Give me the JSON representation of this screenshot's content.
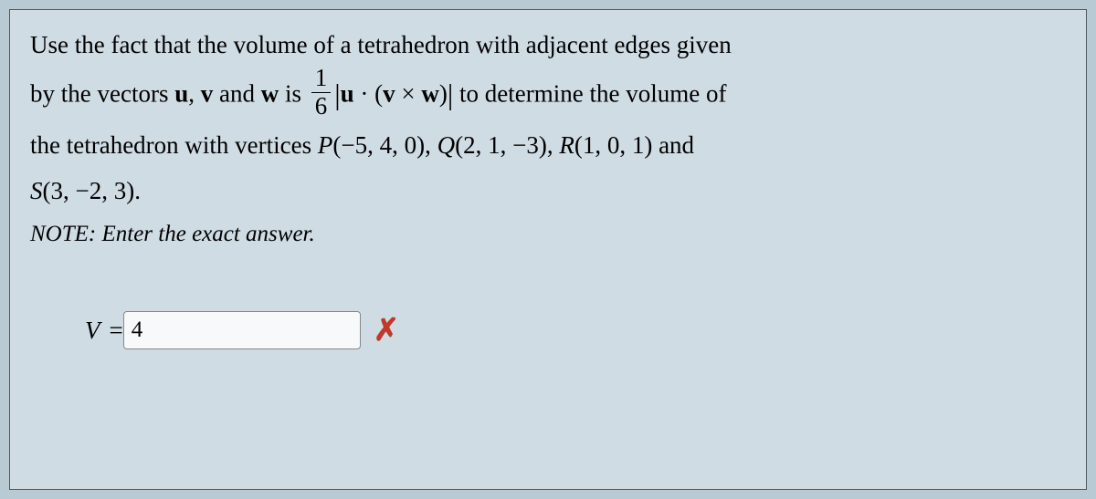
{
  "problem": {
    "line1_pre": "Use the fact that the volume of a tetrahedron with adjacent edges given",
    "line2_pre": "by the vectors ",
    "u": "u",
    "v": "v",
    "w": "w",
    "between_uv": ", ",
    "between_vw": " and ",
    "line2_mid": " is ",
    "frac_num": "1",
    "frac_den": "6",
    "dot": " · (",
    "cross": " × ",
    "close_paren": ")",
    "line2_post": " to determine the volume of",
    "line3_pre": "the tetrahedron with vertices ",
    "P_label": "P",
    "P_coords": "(−5, 4, 0)",
    "Q_label": "Q",
    "Q_coords": "(2, 1, −3)",
    "R_label": "R",
    "R_coords": "(1, 0, 1)",
    "and": " and",
    "S_label": "S",
    "S_coords": "(3, −2, 3)",
    "period": ".",
    "comma": ", "
  },
  "note": "NOTE: Enter the exact answer.",
  "answer": {
    "label": "V",
    "equals": " = ",
    "value": "4"
  },
  "feedback": {
    "status": "incorrect",
    "icon_color": "#c0392b",
    "glyph": "✗"
  },
  "colors": {
    "panel_bg": "#d0dce4",
    "body_bg": "#b8cad4",
    "text": "#000000",
    "input_border": "#888888",
    "input_bg": "#f8f9fb"
  },
  "typography": {
    "body_fontsize": 27,
    "note_fontsize": 25,
    "font_family": "Georgia / Times (serif, math textbook)"
  }
}
